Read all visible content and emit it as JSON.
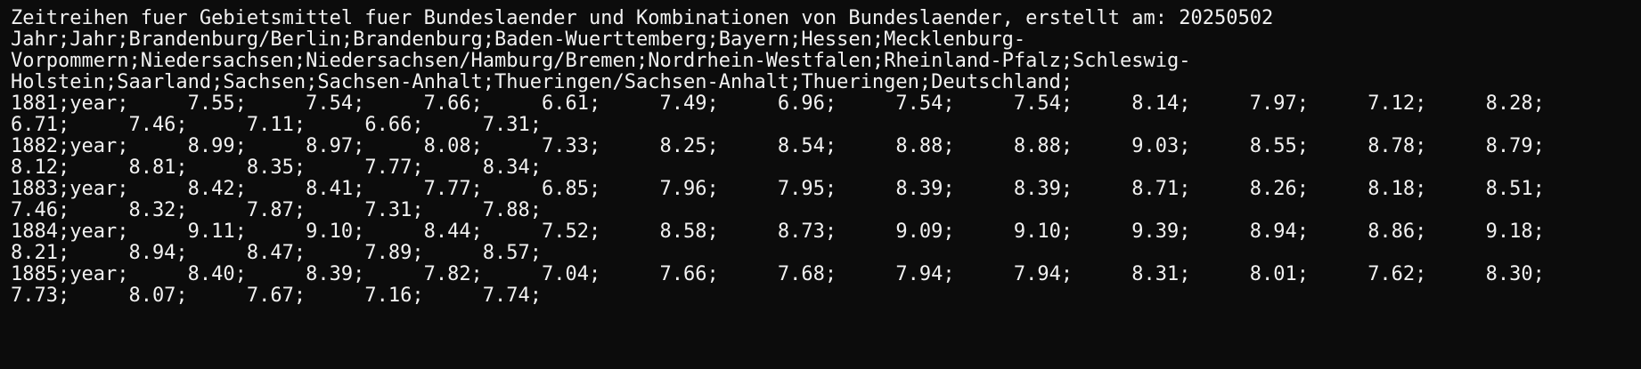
{
  "terminal": {
    "lines": [
      "Zeitreihen fuer Gebietsmittel fuer Bundeslaender und Kombinationen von Bundeslaender, erstellt am: 20250502",
      "Jahr;Jahr;Brandenburg/Berlin;Brandenburg;Baden-Wuerttemberg;Bayern;Hessen;Mecklenburg-",
      "Vorpommern;Niedersachsen;Niedersachsen/Hamburg/Bremen;Nordrhein-Westfalen;Rheinland-Pfalz;Schleswig-",
      "Holstein;Saarland;Sachsen;Sachsen-Anhalt;Thueringen/Sachsen-Anhalt;Thueringen;Deutschland;",
      "1881;year;     7.55;     7.54;     7.66;     6.61;     7.49;     6.96;     7.54;     7.54;     8.14;     7.97;     7.12;     8.28;",
      "6.71;     7.46;     7.11;     6.66;     7.31;",
      "1882;year;     8.99;     8.97;     8.08;     7.33;     8.25;     8.54;     8.88;     8.88;     9.03;     8.55;     8.78;     8.79;",
      "8.12;     8.81;     8.35;     7.77;     8.34;",
      "1883;year;     8.42;     8.41;     7.77;     6.85;     7.96;     7.95;     8.39;     8.39;     8.71;     8.26;     8.18;     8.51;",
      "7.46;     8.32;     7.87;     7.31;     7.88;",
      "1884;year;     9.11;     9.10;     8.44;     7.52;     8.58;     8.73;     9.09;     9.10;     9.39;     8.94;     8.86;     9.18;",
      "8.21;     8.94;     8.47;     7.89;     8.57;",
      "1885;year;     8.40;     8.39;     7.82;     7.04;     7.66;     7.68;     7.94;     7.94;     8.31;     8.01;     7.62;     8.30;",
      "7.73;     8.07;     7.67;     7.16;     7.74;"
    ]
  }
}
